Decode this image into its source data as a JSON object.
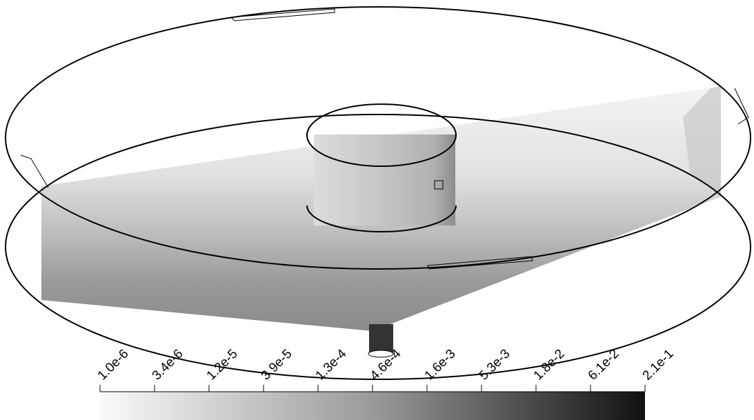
{
  "colorbar": {
    "labels": [
      "1.0e-6",
      "3.4e-6",
      "1.2e-5",
      "3.9e-5",
      "1.3e-4",
      "4.6e-4",
      "1.6e-3",
      "5.3e-3",
      "1.8e-2",
      "6.1e-2",
      "2.1e-1"
    ]
  }
}
